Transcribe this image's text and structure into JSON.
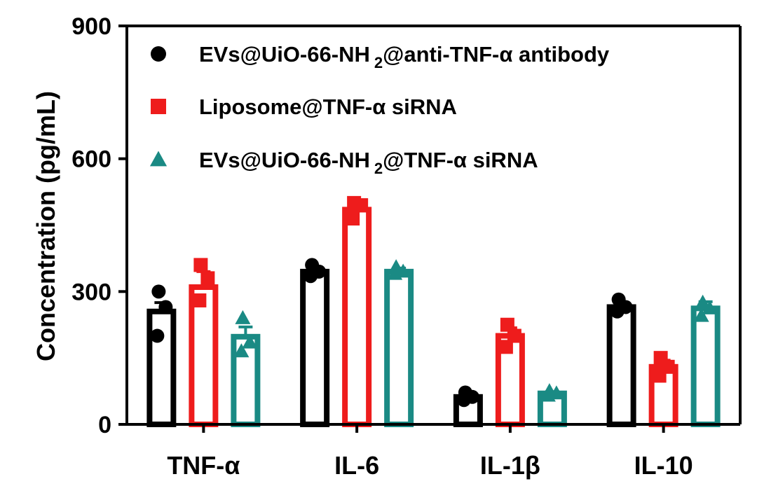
{
  "chart_data": {
    "type": "bar",
    "title": "",
    "xlabel": "",
    "ylabel": "Concentration (pg/mL)",
    "ylim": [
      0,
      900
    ],
    "yticks": [
      "0",
      "300",
      "600",
      "900"
    ],
    "categories": [
      "TNF-α",
      "IL-6",
      "IL-1β",
      "IL-10"
    ],
    "legend_position": "top",
    "series": [
      {
        "name": "EVs@UiO-66-NH2@anti-TNF-α antibody",
        "name_parts": {
          "pre": "EVs@UiO-66-NH",
          "sub": "2",
          "post": "@anti-TNF-α antibody"
        },
        "color": "#000000",
        "marker": "circle",
        "values": [
          255,
          345,
          62,
          265
        ],
        "error": [
          20,
          8,
          6,
          8
        ],
        "points": [
          [
            300,
            265,
            200
          ],
          [
            360,
            345,
            335
          ],
          [
            72,
            62,
            55
          ],
          [
            282,
            265,
            255
          ]
        ]
      },
      {
        "name": "Liposome@TNF-α siRNA",
        "name_parts": {
          "pre": "Liposome@TNF-α siRNA",
          "sub": "",
          "post": ""
        },
        "color": "#ee1c1c",
        "marker": "square",
        "values": [
          310,
          485,
          200,
          130
        ],
        "error": [
          35,
          12,
          18,
          15
        ],
        "points": [
          [
            360,
            330,
            280
          ],
          [
            500,
            495,
            465
          ],
          [
            225,
            200,
            175
          ],
          [
            150,
            130,
            110
          ]
        ]
      },
      {
        "name": "EVs@UiO-66-NH2@TNF-α siRNA",
        "name_parts": {
          "pre": "EVs@UiO-66-NH",
          "sub": "2",
          "post": "@TNF-α siRNA"
        },
        "color": "#1a8a84",
        "marker": "triangle",
        "values": [
          198,
          345,
          70,
          262
        ],
        "error": [
          22,
          8,
          4,
          15
        ],
        "points": [
          [
            240,
            185,
            165
          ],
          [
            355,
            345,
            340
          ],
          [
            75,
            70,
            65
          ],
          [
            275,
            262,
            245
          ]
        ]
      }
    ]
  }
}
